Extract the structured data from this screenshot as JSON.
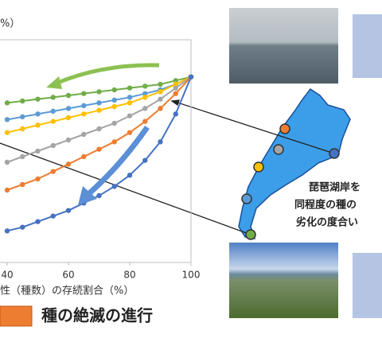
{
  "chart_data": {
    "type": "line",
    "y_label": "%）",
    "x_label": "性（種数）の存続割合（%）",
    "x": [
      40,
      45,
      50,
      55,
      60,
      65,
      70,
      75,
      80,
      85,
      90,
      95,
      100
    ],
    "xlim": [
      0,
      100
    ],
    "xticks": [
      40,
      60,
      80,
      100
    ],
    "ylim": [
      0,
      120
    ],
    "series": [
      {
        "color": "#70ad47",
        "values": [
          86,
          87,
          88,
          89,
          90,
          91,
          92,
          93,
          94,
          95,
          96,
          98,
          100
        ]
      },
      {
        "color": "#5b9bd5",
        "values": [
          77,
          78.5,
          80,
          81.5,
          83,
          84.5,
          86,
          87.5,
          89,
          91,
          93,
          96,
          100
        ]
      },
      {
        "color": "#ffc000",
        "values": [
          70,
          72,
          74,
          76,
          78,
          80,
          82,
          84,
          86,
          89,
          92,
          96,
          100
        ]
      },
      {
        "color": "#a5a5a5",
        "values": [
          54,
          57,
          60,
          63,
          66,
          69,
          72,
          75,
          79,
          83,
          88,
          94,
          100
        ]
      },
      {
        "color": "#ed7d31",
        "values": [
          39,
          42,
          45,
          49,
          53,
          57,
          61,
          65,
          70,
          76,
          83,
          91,
          100
        ]
      },
      {
        "color": "#4472c4",
        "values": [
          17,
          19,
          22,
          25,
          28,
          32,
          36,
          41,
          47,
          55,
          65,
          80,
          100
        ]
      }
    ]
  },
  "legend_label": "種の絶滅の進行",
  "map_text": [
    "琵琶湖岸を",
    "同程度の種の",
    "劣化の度合い"
  ]
}
